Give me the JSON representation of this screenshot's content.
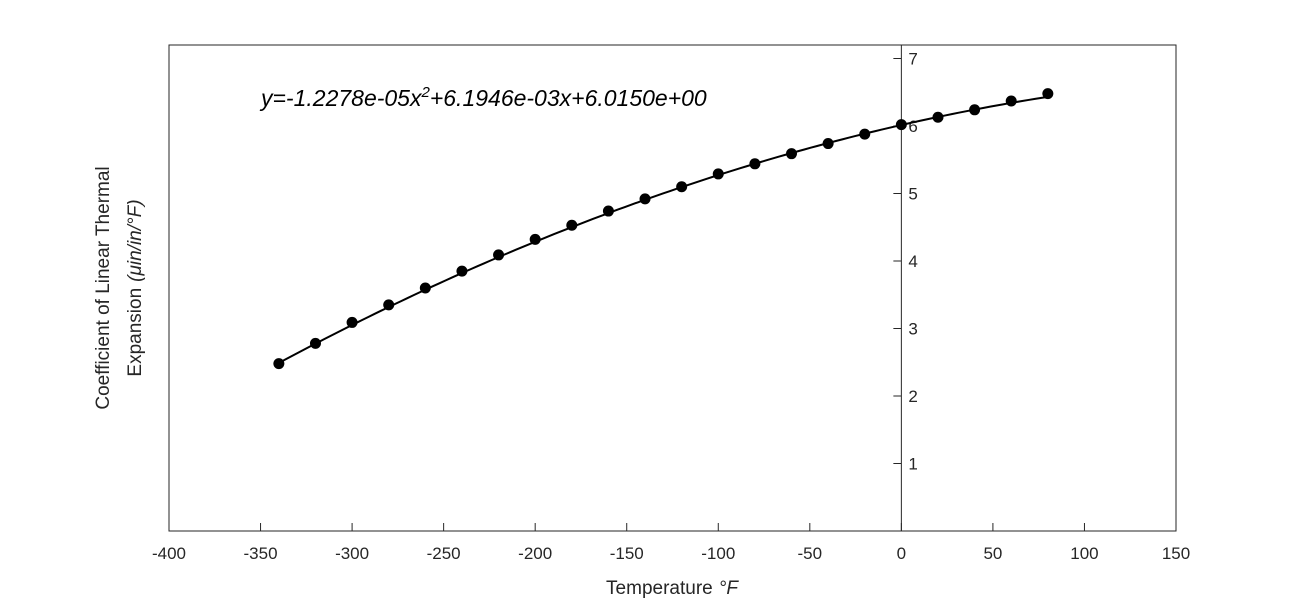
{
  "chart_data": {
    "type": "line",
    "title": "",
    "xlabel": "Temperature",
    "xlabel_unit": "°F",
    "ylabel_line1": "Coefficient of Linear Thermal",
    "ylabel_line2": "Expansion",
    "ylabel_unit": "(μin/in/°F)",
    "xlim": [
      -400,
      150
    ],
    "ylim": [
      0,
      7.2
    ],
    "x_ticks": [
      -400,
      -350,
      -300,
      -250,
      -200,
      -150,
      -100,
      -50,
      0,
      50,
      100,
      150
    ],
    "y_ticks": [
      1,
      2,
      3,
      4,
      5,
      6,
      7
    ],
    "y_axis_at_x": 0,
    "grid": false,
    "box": true,
    "annotation": {
      "pre": "y=-1.2278e-05x",
      "exp": "2",
      "post": "+6.1946e-03x+6.0150e+00"
    },
    "fit": {
      "a": -1.2278e-05,
      "b": 0.0061946,
      "c": 6.015,
      "x_range": [
        -340,
        80
      ]
    },
    "series": [
      {
        "color": "#000000",
        "marker": "filled-circle",
        "x": [
          -340,
          -320,
          -300,
          -280,
          -260,
          -240,
          -220,
          -200,
          -180,
          -160,
          -140,
          -120,
          -100,
          -80,
          -60,
          -40,
          -20,
          0,
          20,
          40,
          60,
          80
        ],
        "y": [
          2.48,
          2.78,
          3.09,
          3.35,
          3.6,
          3.85,
          4.09,
          4.32,
          4.53,
          4.74,
          4.92,
          5.1,
          5.29,
          5.44,
          5.59,
          5.74,
          5.88,
          6.02,
          6.13,
          6.24,
          6.37,
          6.48
        ]
      }
    ]
  }
}
